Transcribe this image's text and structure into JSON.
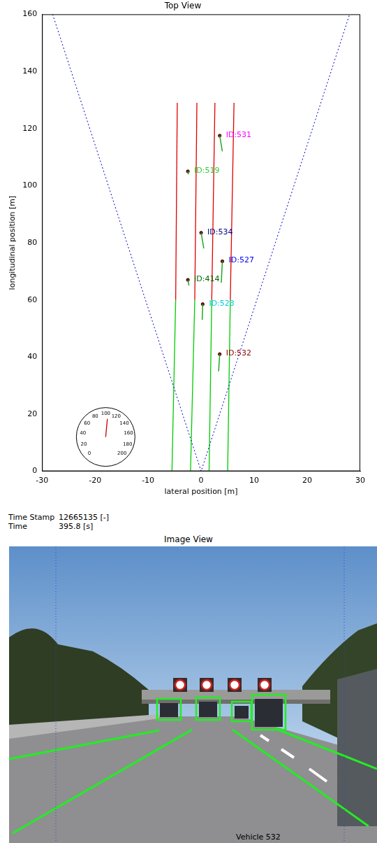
{
  "chart_data": {
    "type": "scatter",
    "title": "Top View",
    "x_label": "lateral position [m]",
    "y_label": "longitudinal position [m]",
    "xlim": [
      -30,
      30
    ],
    "xticks": [
      -30,
      -20,
      -10,
      0,
      10,
      20,
      30
    ],
    "ylim": [
      0,
      160
    ],
    "yticks": [
      0,
      20,
      40,
      60,
      80,
      100,
      120,
      140,
      160
    ],
    "grid": false,
    "series": [
      {
        "color": "#0000cc",
        "line_style": "dotted",
        "x": [
          -28,
          0,
          28
        ],
        "values": [
          160,
          0,
          160
        ]
      },
      {
        "color": "#00cc00",
        "line_style": "solid",
        "x": [
          -5.5,
          -4.8
        ],
        "values": [
          0,
          60
        ]
      },
      {
        "color": "#00cc00",
        "line_style": "solid",
        "x": [
          -2.0,
          -1.2
        ],
        "values": [
          0,
          60
        ]
      },
      {
        "color": "#00cc00",
        "line_style": "solid",
        "x": [
          1.5,
          2.0
        ],
        "values": [
          0,
          60
        ]
      },
      {
        "color": "#00cc00",
        "line_style": "solid",
        "x": [
          5.0,
          5.5
        ],
        "values": [
          0,
          60
        ]
      },
      {
        "color": "#e00000",
        "line_style": "solid",
        "x": [
          -4.8,
          -4.5
        ],
        "values": [
          60,
          129
        ]
      },
      {
        "color": "#e00000",
        "line_style": "solid",
        "x": [
          -1.2,
          -0.8
        ],
        "values": [
          60,
          129
        ]
      },
      {
        "color": "#e00000",
        "line_style": "solid",
        "x": [
          2.0,
          2.6
        ],
        "values": [
          60,
          129
        ]
      },
      {
        "color": "#e00000",
        "line_style": "solid",
        "x": [
          5.5,
          6.2
        ],
        "values": [
          60,
          129
        ]
      }
    ],
    "objects": [
      {
        "label": "ID:531",
        "color": "#ff00ff",
        "x": 3.5,
        "y": 117.5,
        "track_x": [
          3.5,
          4.0
        ],
        "track_y": [
          117.5,
          112
        ]
      },
      {
        "label": "ID:519",
        "color": "#33cc33",
        "x": -2.5,
        "y": 105,
        "track_x": [
          -2.5,
          -2.4
        ],
        "track_y": [
          105,
          104
        ]
      },
      {
        "label": "ID:534",
        "color": "#000080",
        "x": 0.0,
        "y": 83.5,
        "track_x": [
          0.0,
          0.5
        ],
        "track_y": [
          83.5,
          78
        ]
      },
      {
        "label": "ID:527",
        "color": "#0000ee",
        "x": 4.0,
        "y": 73.5,
        "track_x": [
          4.0,
          3.8
        ],
        "track_y": [
          73.5,
          66
        ]
      },
      {
        "label": "ID:414",
        "color": "#006400",
        "x": -2.5,
        "y": 67,
        "track_x": [
          -2.5,
          -2.3
        ],
        "track_y": [
          67,
          65
        ]
      },
      {
        "label": "ID:523",
        "color": "#00ccdd",
        "x": 0.3,
        "y": 58.5,
        "track_x": [
          0.3,
          0.2
        ],
        "track_y": [
          58.5,
          53
        ]
      },
      {
        "label": "ID:532",
        "color": "#8b0000",
        "x": 3.5,
        "y": 41,
        "track_x": [
          3.5,
          3.3
        ],
        "track_y": [
          41,
          35
        ]
      }
    ],
    "gauge": {
      "x": -18,
      "y": 12,
      "ticks": [
        0,
        20,
        40,
        60,
        80,
        100,
        120,
        140,
        160,
        180,
        200
      ],
      "value": 104,
      "color": "#cc0000"
    }
  },
  "image_view": {
    "info": [
      {
        "label": "Time Stamp",
        "value": "12665135 [-]"
      },
      {
        "label": "Time",
        "value": "395.8 [s]"
      }
    ],
    "title": "Image View",
    "caption": "Vehicle 532"
  }
}
